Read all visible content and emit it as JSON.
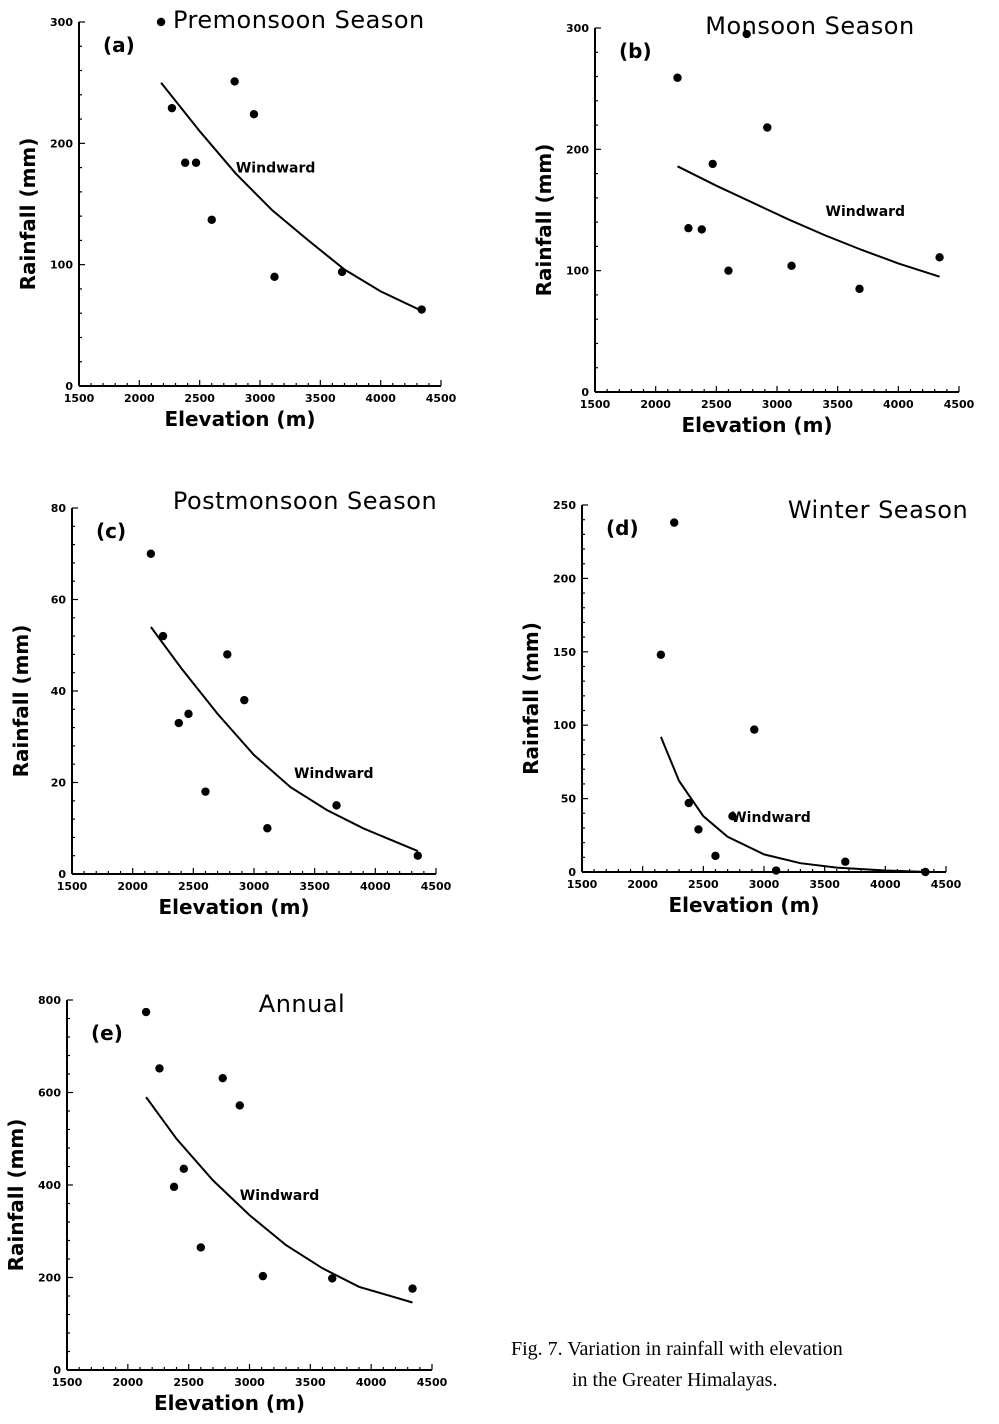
{
  "figure": {
    "caption_line1": "Fig. 7.  Variation in rainfall with elevation",
    "caption_line2": "in the Greater Himalayas."
  },
  "chart_data": [
    {
      "id": "a",
      "type": "scatter",
      "panel_label": "(a)",
      "title": "Premonsoon Season",
      "xlabel": "Elevation  (m)",
      "ylabel": "Rainfall  (mm)",
      "xlim": [
        1500,
        4500
      ],
      "ylim": [
        0,
        300
      ],
      "xticks": [
        1500,
        2000,
        2500,
        3000,
        3500,
        4000,
        4500
      ],
      "yticks": [
        0,
        100,
        200,
        300
      ],
      "points": [
        [
          2180,
          300
        ],
        [
          2270,
          229
        ],
        [
          2380,
          184
        ],
        [
          2470,
          184
        ],
        [
          2600,
          137
        ],
        [
          2790,
          251
        ],
        [
          2950,
          224
        ],
        [
          3120,
          90
        ],
        [
          3680,
          94
        ],
        [
          4340,
          63
        ]
      ],
      "fit_line": {
        "label": "Windward",
        "x": [
          2180,
          2500,
          2800,
          3100,
          3400,
          3700,
          4000,
          4340
        ],
        "y": [
          250,
          210,
          175,
          145,
          120,
          96,
          78,
          62
        ]
      }
    },
    {
      "id": "b",
      "type": "scatter",
      "panel_label": "(b)",
      "title": "Monsoon Season",
      "xlabel": "Elevation  (m)",
      "ylabel": "Rainfall  (mm)",
      "xlim": [
        1500,
        4500
      ],
      "ylim": [
        0,
        300
      ],
      "xticks": [
        1500,
        2000,
        2500,
        3000,
        3500,
        4000,
        4500
      ],
      "yticks": [
        0,
        100,
        200,
        300
      ],
      "points": [
        [
          2180,
          259
        ],
        [
          2270,
          135
        ],
        [
          2380,
          134
        ],
        [
          2470,
          188
        ],
        [
          2600,
          100
        ],
        [
          2750,
          295
        ],
        [
          2920,
          218
        ],
        [
          3120,
          104
        ],
        [
          3680,
          85
        ],
        [
          4340,
          111
        ]
      ],
      "fit_line": {
        "label": "Windward",
        "x": [
          2180,
          2500,
          2800,
          3100,
          3400,
          3700,
          4000,
          4340
        ],
        "y": [
          186,
          170,
          156,
          142,
          129,
          117,
          106,
          95
        ]
      }
    },
    {
      "id": "c",
      "type": "scatter",
      "panel_label": "(c)",
      "title": "Postmonsoon Season",
      "xlabel": "Elevation  (m)",
      "ylabel": "Rainfall  (mm)",
      "xlim": [
        1500,
        4500
      ],
      "ylim": [
        0,
        80
      ],
      "xticks": [
        1500,
        2000,
        2500,
        3000,
        3500,
        4000,
        4500
      ],
      "yticks": [
        0,
        20,
        40,
        60,
        80
      ],
      "points": [
        [
          2150,
          70
        ],
        [
          2250,
          52
        ],
        [
          2380,
          33
        ],
        [
          2460,
          35
        ],
        [
          2600,
          18
        ],
        [
          2780,
          48
        ],
        [
          2920,
          38
        ],
        [
          3110,
          10
        ],
        [
          3680,
          15
        ],
        [
          4350,
          4
        ]
      ],
      "fit_line": {
        "label": "Windward",
        "x": [
          2150,
          2400,
          2700,
          3000,
          3300,
          3600,
          3900,
          4350
        ],
        "y": [
          54,
          45,
          35,
          26,
          19,
          14,
          10,
          5
        ]
      }
    },
    {
      "id": "d",
      "type": "scatter",
      "panel_label": "(d)",
      "title": "Winter Season",
      "xlabel": "Elevation  (m)",
      "ylabel": "Rainfall  (mm)",
      "xlim": [
        1500,
        4500
      ],
      "ylim": [
        0,
        250
      ],
      "xticks": [
        1500,
        2000,
        2500,
        3000,
        3500,
        4000,
        4500
      ],
      "yticks": [
        0,
        50,
        100,
        150,
        200,
        250
      ],
      "points": [
        [
          2150,
          148
        ],
        [
          2260,
          238
        ],
        [
          2380,
          47
        ],
        [
          2460,
          29
        ],
        [
          2600,
          11
        ],
        [
          2740,
          38
        ],
        [
          2920,
          97
        ],
        [
          3100,
          1
        ],
        [
          3670,
          7
        ],
        [
          4330,
          0
        ]
      ],
      "fit_line": {
        "label": "Windward",
        "x": [
          2150,
          2300,
          2500,
          2700,
          3000,
          3300,
          3600,
          4000,
          4350
        ],
        "y": [
          92,
          62,
          38,
          24,
          12,
          6,
          3,
          1,
          0
        ]
      }
    },
    {
      "id": "e",
      "type": "scatter",
      "panel_label": "(e)",
      "title": "Annual",
      "xlabel": "Elevation  (m)",
      "ylabel": "Rainfall  (mm)",
      "xlim": [
        1500,
        4500
      ],
      "ylim": [
        0,
        800
      ],
      "xticks": [
        1500,
        2000,
        2500,
        3000,
        3500,
        4000,
        4500
      ],
      "yticks": [
        0,
        200,
        400,
        600,
        800
      ],
      "points": [
        [
          2150,
          774
        ],
        [
          2260,
          652
        ],
        [
          2380,
          396
        ],
        [
          2460,
          435
        ],
        [
          2600,
          265
        ],
        [
          2780,
          631
        ],
        [
          2920,
          572
        ],
        [
          3110,
          203
        ],
        [
          3680,
          198
        ],
        [
          4340,
          176
        ]
      ],
      "fit_line": {
        "label": "Windward",
        "x": [
          2150,
          2400,
          2700,
          3000,
          3300,
          3600,
          3900,
          4340
        ],
        "y": [
          590,
          500,
          410,
          335,
          270,
          220,
          180,
          146
        ]
      }
    }
  ]
}
